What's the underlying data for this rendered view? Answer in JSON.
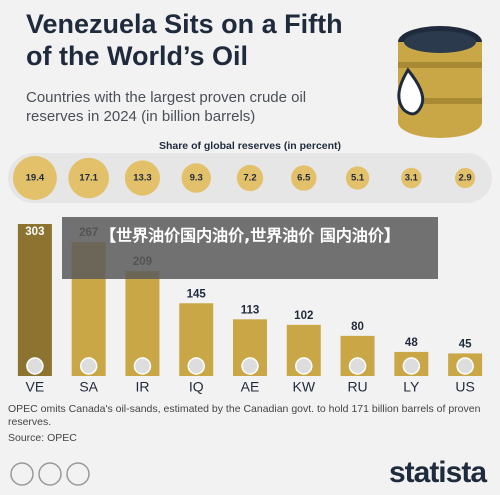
{
  "title": "Venezuela Sits on a Fifth of the World’s Oil",
  "subtitle": "Countries with the largest proven crude oil reserves in 2024 (in billion barrels)",
  "chart_data": {
    "type": "bar",
    "share_title": "Share of global reserves (in percent)",
    "categories": [
      "VE",
      "SA",
      "IR",
      "IQ",
      "AE",
      "KW",
      "RU",
      "LY",
      "US"
    ],
    "values": [
      303,
      267,
      209,
      145,
      113,
      102,
      80,
      48,
      45
    ],
    "shares": [
      19.4,
      17.1,
      13.3,
      9.3,
      7.2,
      6.5,
      5.1,
      3.1,
      2.9
    ],
    "color": "#c9a747",
    "highlight_color": "#8c7330",
    "share_color": "#e3c06a"
  },
  "note": "OPEC omits Canada's oil-sands, estimated by the Canadian govt. to hold 171 billion barrels of proven reserves.",
  "source": "Source: OPEC",
  "logo": "statista",
  "overlay_text": "【世界油价国内油价,世界油价 国内油价】"
}
